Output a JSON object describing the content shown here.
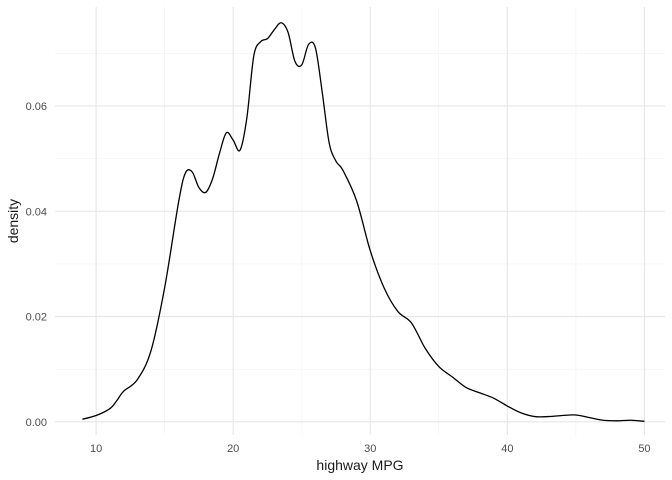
{
  "chart_data": {
    "type": "line",
    "title": "",
    "xlabel": "highway MPG",
    "ylabel": "density",
    "xlim": [
      7,
      51.5
    ],
    "ylim": [
      -0.0025,
      0.0788
    ],
    "x_major_ticks": [
      10,
      20,
      30,
      40,
      50
    ],
    "x_minor_ticks": [
      15,
      25,
      35,
      45
    ],
    "y_major_ticks": [
      0.0,
      0.02,
      0.04,
      0.06
    ],
    "y_minor_ticks": [
      0.01,
      0.03,
      0.05,
      0.07
    ],
    "x_tick_labels": [
      "10",
      "20",
      "30",
      "40",
      "50"
    ],
    "y_tick_labels": [
      "0.00",
      "0.02",
      "0.04",
      "0.06"
    ],
    "grid": true,
    "legend": "none",
    "line_color": "#000000",
    "series": [
      {
        "x": [
          9,
          10,
          11,
          11.5,
          12,
          13,
          14,
          15,
          16,
          16.5,
          17,
          17.5,
          18,
          18.5,
          19,
          19.5,
          20,
          20.5,
          21,
          21.5,
          22,
          22.5,
          23,
          23.5,
          24,
          24.5,
          25,
          25.5,
          26,
          26.5,
          27,
          27.5,
          28,
          29,
          30,
          31,
          32,
          33,
          34,
          35,
          36,
          37,
          38,
          39,
          40,
          41,
          42,
          43,
          44,
          45,
          46,
          47,
          48,
          49,
          50
        ],
        "y": [
          0.0005,
          0.0012,
          0.0025,
          0.004,
          0.0058,
          0.008,
          0.0135,
          0.0255,
          0.0415,
          0.0472,
          0.0475,
          0.0445,
          0.0436,
          0.0462,
          0.051,
          0.0549,
          0.0535,
          0.0516,
          0.0578,
          0.0695,
          0.0722,
          0.0728,
          0.0745,
          0.0758,
          0.074,
          0.0685,
          0.0678,
          0.0717,
          0.071,
          0.0625,
          0.053,
          0.0495,
          0.0478,
          0.042,
          0.0325,
          0.0255,
          0.021,
          0.0188,
          0.014,
          0.0105,
          0.0085,
          0.0065,
          0.0055,
          0.0045,
          0.003,
          0.0017,
          0.001,
          0.001,
          0.0012,
          0.0013,
          0.0008,
          0.0003,
          0.0002,
          0.0003,
          0.0001
        ]
      }
    ]
  }
}
